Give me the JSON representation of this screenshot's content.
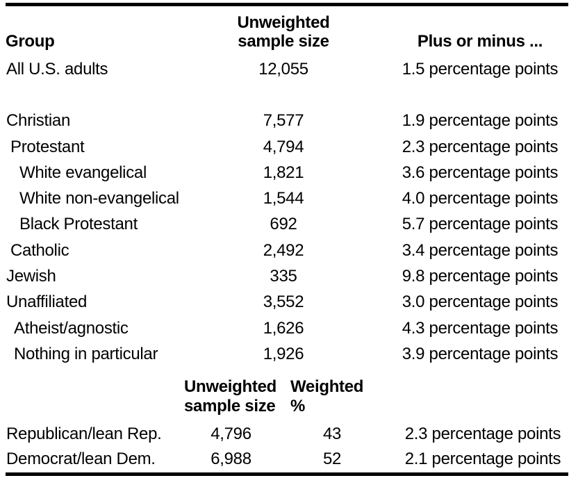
{
  "table": {
    "header": {
      "group": "Group",
      "sample_line1": "Unweighted",
      "sample_line2": "sample size",
      "plus_minus": "Plus or minus ..."
    },
    "rows": [
      {
        "group": "All U.S. adults",
        "indent": 0,
        "sample_size": "12,055",
        "margin": "1.5 percentage points"
      },
      {
        "spacer": true
      },
      {
        "group": "Christian",
        "indent": 0,
        "sample_size": "7,577",
        "margin": "1.9 percentage points"
      },
      {
        "group": "Protestant",
        "indent": 1,
        "sample_size": "4,794",
        "margin": "2.3 percentage points"
      },
      {
        "group": "White evangelical",
        "indent": 3,
        "sample_size": "1,821",
        "margin": "3.6 percentage points"
      },
      {
        "group": "White non-evangelical",
        "indent": 3,
        "sample_size": "1,544",
        "margin": "4.0 percentage points"
      },
      {
        "group": "Black Protestant",
        "indent": 3,
        "sample_size": "692",
        "margin": "5.7 percentage points"
      },
      {
        "group": "Catholic",
        "indent": 1,
        "sample_size": "2,492",
        "margin": "3.4 percentage points"
      },
      {
        "group": "Jewish",
        "indent": 0,
        "sample_size": "335",
        "margin": "9.8 percentage points"
      },
      {
        "group": "Unaffiliated",
        "indent": 0,
        "sample_size": "3,552",
        "margin": "3.0 percentage points"
      },
      {
        "group": "Atheist/agnostic",
        "indent": 2,
        "sample_size": "1,626",
        "margin": "4.3 percentage points"
      },
      {
        "group": "Nothing in particular",
        "indent": 2,
        "sample_size": "1,926",
        "margin": "3.9 percentage points"
      }
    ],
    "party_header": {
      "sample_line1": "Unweighted",
      "sample_line2": "sample size",
      "weighted": "Weighted %"
    },
    "party_rows": [
      {
        "group": "Republican/lean Rep.",
        "sample_size": "4,796",
        "weighted": "43",
        "margin": "2.3 percentage points"
      },
      {
        "group": "Democrat/lean Dem.",
        "sample_size": "6,988",
        "weighted": "52",
        "margin": "2.1 percentage points"
      }
    ],
    "colors": {
      "text": "#000000",
      "rule": "#000000",
      "background": "#ffffff"
    }
  }
}
